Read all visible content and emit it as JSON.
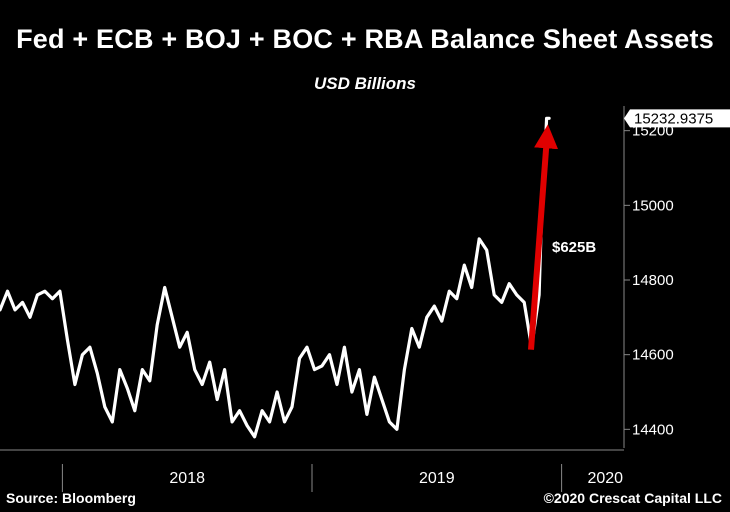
{
  "header": {
    "title": "Fed + ECB + BOJ + BOC + RBA Balance Sheet Assets",
    "subtitle": "USD Billions"
  },
  "footer": {
    "source": "Source: Bloomberg",
    "copyright": "©2020 Crescat Capital LLC"
  },
  "colors": {
    "background": "#000000",
    "series_line": "#ffffff",
    "arrow": "#e00000",
    "axis": "#888888"
  },
  "chart_data": {
    "type": "line",
    "title": "Fed + ECB + BOJ + BOC + RBA Balance Sheet Assets",
    "subtitle": "USD Billions",
    "xlabel": "",
    "ylabel": "",
    "x_ticks": [
      "2018",
      "2019",
      "2020"
    ],
    "y_ticks": [
      14400,
      14600,
      14800,
      15000,
      15200
    ],
    "ylim": [
      14350,
      15250
    ],
    "xlim": [
      2017.75,
      2020.25
    ],
    "grid": false,
    "legend": "none",
    "last_value_label": "15232.9375",
    "annotation": {
      "text": "$625B",
      "from_value": 14608,
      "to_value": 15233
    },
    "series": [
      {
        "x": [
          2017.75,
          2017.78,
          2017.81,
          2017.84,
          2017.87,
          2017.9,
          2017.93,
          2017.96,
          2017.99,
          2018.02,
          2018.05,
          2018.08,
          2018.11,
          2018.14,
          2018.17,
          2018.2,
          2018.23,
          2018.26,
          2018.29,
          2018.32,
          2018.35,
          2018.38,
          2018.41,
          2018.44,
          2018.47,
          2018.5,
          2018.53,
          2018.56,
          2018.59,
          2018.62,
          2018.65,
          2018.68,
          2018.71,
          2018.74,
          2018.77,
          2018.8,
          2018.83,
          2018.86,
          2018.89,
          2018.92,
          2018.95,
          2018.98,
          2019.01,
          2019.04,
          2019.07,
          2019.1,
          2019.13,
          2019.16,
          2019.19,
          2019.22,
          2019.25,
          2019.28,
          2019.31,
          2019.34,
          2019.37,
          2019.4,
          2019.43,
          2019.46,
          2019.49,
          2019.52,
          2019.55,
          2019.58,
          2019.61,
          2019.64,
          2019.67,
          2019.7,
          2019.73,
          2019.76,
          2019.79,
          2019.82,
          2019.85,
          2019.88,
          2019.91,
          2019.92,
          2019.93,
          2019.94,
          2019.95
        ],
        "values": [
          14720,
          14770,
          14720,
          14740,
          14700,
          14760,
          14770,
          14750,
          14770,
          14640,
          14520,
          14600,
          14620,
          14550,
          14460,
          14420,
          14560,
          14510,
          14450,
          14560,
          14530,
          14680,
          14780,
          14700,
          14620,
          14660,
          14560,
          14520,
          14580,
          14480,
          14560,
          14420,
          14450,
          14410,
          14380,
          14450,
          14420,
          14500,
          14420,
          14460,
          14590,
          14620,
          14560,
          14570,
          14600,
          14520,
          14620,
          14500,
          14560,
          14440,
          14540,
          14480,
          14420,
          14400,
          14560,
          14670,
          14620,
          14700,
          14730,
          14690,
          14770,
          14750,
          14840,
          14780,
          14910,
          14880,
          14760,
          14740,
          14790,
          14760,
          14740,
          14620,
          14760,
          14980,
          15080,
          15233,
          15233
        ]
      }
    ]
  }
}
